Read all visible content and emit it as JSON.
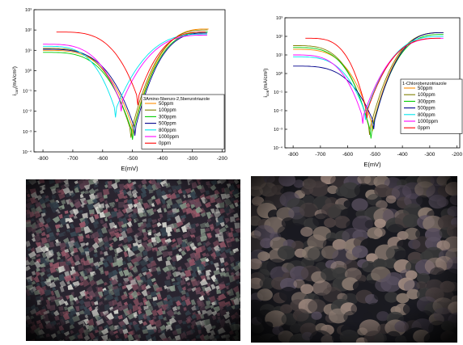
{
  "chart_data": [
    {
      "type": "line",
      "legend_title": "3Amino-5benzo-2,5benzotriazole",
      "legend_placement": "bottom-right",
      "xlabel": "E(mV)",
      "ylabel": "i_corr(mA/cm²)",
      "ylabel_main": "i",
      "ylabel_sub": "corr",
      "ylabel_rest": "(mA/cm²)",
      "xlim": [
        -830,
        -190
      ],
      "ylim_exponent": [
        -4,
        3
      ],
      "y_scale": "log",
      "x_ticks": [
        "-800",
        "-700",
        "-600",
        "-500",
        "-400",
        "-300",
        "-200"
      ],
      "y_ticks": [
        "10⁻⁴",
        "10⁻³",
        "10⁻²",
        "10⁻¹",
        "10⁰",
        "10¹",
        "10²",
        "10³"
      ],
      "series": [
        {
          "name": "50ppm",
          "color": "#ff8c00",
          "ecorr": -498,
          "icorr_exp": -2.7,
          "left_start": [
            -800,
            1.0
          ],
          "right_end": [
            -245,
            2.05
          ]
        },
        {
          "name": "100ppm",
          "color": "#808000",
          "ecorr": -505,
          "icorr_exp": -2.8,
          "left_start": [
            -800,
            1.1
          ],
          "right_end": [
            -248,
            2.0
          ]
        },
        {
          "name": "300ppm",
          "color": "#00cc00",
          "ecorr": -500,
          "icorr_exp": -2.9,
          "left_start": [
            -800,
            0.9
          ],
          "right_end": [
            -248,
            1.9
          ]
        },
        {
          "name": "500ppm",
          "color": "#00008b",
          "ecorr": -492,
          "icorr_exp": -2.7,
          "left_start": [
            -800,
            1.05
          ],
          "right_end": [
            -250,
            1.85
          ]
        },
        {
          "name": "800ppm",
          "color": "#00e5ee",
          "ecorr": -557,
          "icorr_exp": -1.8,
          "left_start": [
            -800,
            1.2
          ],
          "right_end": [
            -250,
            1.8
          ]
        },
        {
          "name": "1000ppm",
          "color": "#ff00ff",
          "ecorr": -538,
          "icorr_exp": -1.5,
          "left_start": [
            -800,
            1.3
          ],
          "right_end": [
            -250,
            1.75
          ]
        },
        {
          "name": "0ppm",
          "color": "#ff0000",
          "ecorr": -482,
          "icorr_exp": -1.2,
          "left_start": [
            -755,
            1.9
          ],
          "right_end": [
            -255,
            1.9
          ]
        }
      ]
    },
    {
      "type": "line",
      "legend_title": "1-Chlorobenzotriazole",
      "legend_placement": "bottom-right",
      "xlabel": "E(mV)",
      "ylabel": "i_corr(mA/cm²)",
      "ylabel_main": "i",
      "ylabel_sub": "corr",
      "ylabel_rest": "(mA/cm²)",
      "xlim": [
        -830,
        -190
      ],
      "ylim_exponent": [
        -4,
        3
      ],
      "y_scale": "log",
      "x_ticks": [
        "-800",
        "-700",
        "-600",
        "-500",
        "-400",
        "-300",
        "-200"
      ],
      "y_ticks": [
        "10⁻⁴",
        "10⁻³",
        "10⁻²",
        "10⁻¹",
        "10⁰",
        "10¹",
        "10²",
        "10³"
      ],
      "series": [
        {
          "name": "50ppm",
          "color": "#ff8c00",
          "ecorr": -510,
          "icorr_exp": -2.6,
          "left_start": [
            -800,
            1.3
          ],
          "right_end": [
            -250,
            2.2
          ]
        },
        {
          "name": "100ppm",
          "color": "#808000",
          "ecorr": -520,
          "icorr_exp": -2.8,
          "left_start": [
            -800,
            1.5
          ],
          "right_end": [
            -250,
            2.2
          ]
        },
        {
          "name": "300ppm",
          "color": "#00cc00",
          "ecorr": -515,
          "icorr_exp": -3.0,
          "left_start": [
            -800,
            1.4
          ],
          "right_end": [
            -250,
            2.1
          ]
        },
        {
          "name": "500ppm",
          "color": "#00008b",
          "ecorr": -505,
          "icorr_exp": -2.5,
          "left_start": [
            -800,
            0.4
          ],
          "right_end": [
            -250,
            2.2
          ]
        },
        {
          "name": "800ppm",
          "color": "#00e5ee",
          "ecorr": -535,
          "icorr_exp": -2.0,
          "left_start": [
            -800,
            0.9
          ],
          "right_end": [
            -250,
            2.0
          ]
        },
        {
          "name": "1000ppm",
          "color": "#ff00ff",
          "ecorr": -545,
          "icorr_exp": -2.2,
          "left_start": [
            -800,
            1.0
          ],
          "right_end": [
            -250,
            1.9
          ]
        },
        {
          "name": "0ppm",
          "color": "#ff0000",
          "ecorr": -530,
          "icorr_exp": -1.9,
          "left_start": [
            -755,
            1.9
          ],
          "right_end": [
            -260,
            1.9
          ]
        }
      ]
    }
  ],
  "photos": [
    {
      "name": "micrograph-left",
      "palette": [
        "#2a2530",
        "#6a4a5a",
        "#8a9a8a",
        "#3a4a55",
        "#9a5a6a",
        "#d8d8d0"
      ]
    },
    {
      "name": "micrograph-right",
      "palette": [
        "#1a1a20",
        "#4a4040",
        "#8a7a70",
        "#5a5060",
        "#a08a80",
        "#3a3a3a"
      ]
    }
  ]
}
